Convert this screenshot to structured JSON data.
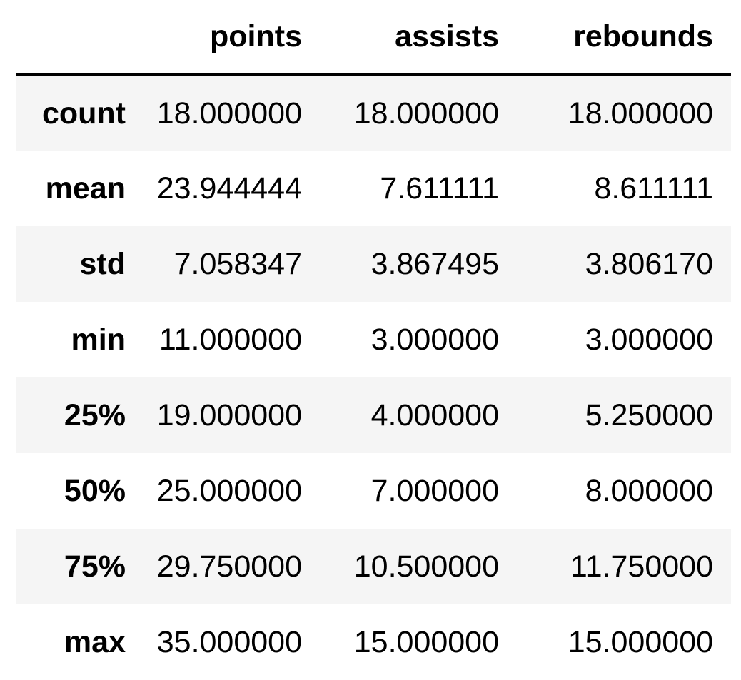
{
  "chart_data": {
    "type": "table",
    "columns": [
      "points",
      "assists",
      "rebounds"
    ],
    "rows": [
      {
        "label": "count",
        "values": [
          "18.000000",
          "18.000000",
          "18.000000"
        ]
      },
      {
        "label": "mean",
        "values": [
          "23.944444",
          "7.611111",
          "8.611111"
        ]
      },
      {
        "label": "std",
        "values": [
          "7.058347",
          "3.867495",
          "3.806170"
        ]
      },
      {
        "label": "min",
        "values": [
          "11.000000",
          "3.000000",
          "3.000000"
        ]
      },
      {
        "label": "25%",
        "values": [
          "19.000000",
          "4.000000",
          "5.250000"
        ]
      },
      {
        "label": "50%",
        "values": [
          "25.000000",
          "7.000000",
          "8.000000"
        ]
      },
      {
        "label": "75%",
        "values": [
          "29.750000",
          "10.500000",
          "11.750000"
        ]
      },
      {
        "label": "max",
        "values": [
          "35.000000",
          "15.000000",
          "15.000000"
        ]
      }
    ]
  },
  "colors": {
    "text": "#000000",
    "striped_row": "#f5f5f5",
    "plain_row": "#ffffff",
    "header_rule": "#000000"
  }
}
